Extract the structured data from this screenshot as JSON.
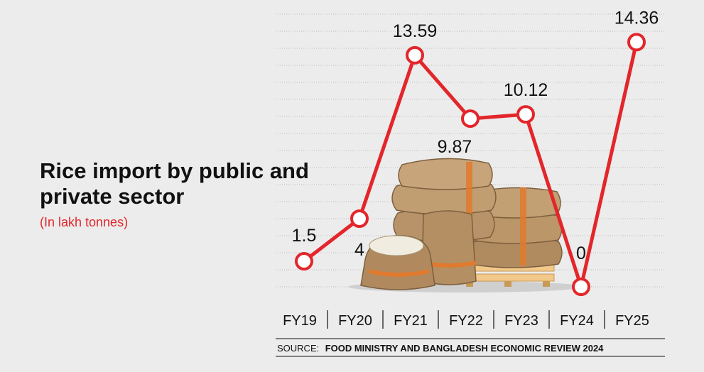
{
  "colors": {
    "background": "#ececec",
    "line": "#e3262b",
    "marker_fill": "#ffffff",
    "text": "#111111",
    "subtitle": "#e3262b",
    "grid": "#bdbdbd",
    "sack": "#b8946a",
    "sack_band": "#e07a2e",
    "pallet": "#f2c98b"
  },
  "chart_data": {
    "type": "line",
    "title_lines": [
      "Rice import by public and",
      "private sector"
    ],
    "subtitle": "(In lakh tonnes)",
    "categories": [
      "FY19",
      "FY20",
      "FY21",
      "FY22",
      "FY23",
      "FY24",
      "FY25"
    ],
    "values": [
      1.5,
      4,
      13.59,
      9.87,
      10.12,
      0,
      14.36
    ],
    "labels": [
      "1.5",
      "4",
      "13.59",
      "9.87",
      "10.12",
      "0",
      "14.36"
    ],
    "ylim": [
      0,
      16
    ],
    "grid": true,
    "xlabel": "",
    "ylabel": "",
    "source_prefix": "SOURCE:",
    "source": "FOOD MINISTRY AND BANGLADESH ECONOMIC REVIEW 2024"
  }
}
